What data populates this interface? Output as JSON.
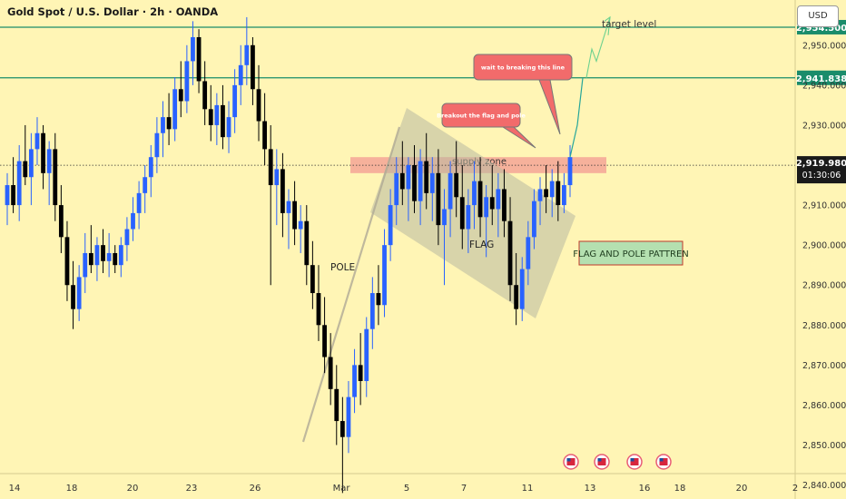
{
  "header": {
    "title": "Gold Spot / U.S. Dollar · 2h · OANDA",
    "currency_button": "USD"
  },
  "chart_data": {
    "type": "candlestick",
    "y_ticks": [
      "2,950.000",
      "2,940.000",
      "2,930.000",
      "2,920.000",
      "2,910.000",
      "2,900.000",
      "2,890.000",
      "2,880.000",
      "2,870.000",
      "2,860.000",
      "2,850.000",
      "2,840.000"
    ],
    "y_tick_values": [
      2950,
      2940,
      2930,
      2920,
      2910,
      2900,
      2890,
      2880,
      2870,
      2860,
      2850,
      2840
    ],
    "ylim": [
      2836.5,
      2961.3
    ],
    "x_ticks": [
      "14",
      "18",
      "20",
      "23",
      "26",
      "Mar",
      "5",
      "7",
      "11",
      "13",
      "16",
      "18",
      "20",
      "2"
    ],
    "levels": [
      {
        "price": 2954.5,
        "label": "2,954.500",
        "color": "#1A8C6B"
      },
      {
        "price": 2941.838,
        "label": "2,941.838",
        "color": "#1A8C6B"
      }
    ],
    "current_price": {
      "price": 2919.98,
      "label": "2,919.980",
      "countdown": "01:30:06"
    },
    "candles": [
      [
        2910,
        2918,
        2905,
        2915
      ],
      [
        2915,
        2922,
        2908,
        2910
      ],
      [
        2910,
        2925,
        2906,
        2921
      ],
      [
        2921,
        2930,
        2915,
        2917
      ],
      [
        2917,
        2928,
        2910,
        2924
      ],
      [
        2924,
        2932,
        2920,
        2928
      ],
      [
        2928,
        2930,
        2914,
        2918
      ],
      [
        2918,
        2926,
        2910,
        2924
      ],
      [
        2924,
        2928,
        2906,
        2910
      ],
      [
        2910,
        2915,
        2898,
        2902
      ],
      [
        2902,
        2906,
        2886,
        2890
      ],
      [
        2890,
        2896,
        2879,
        2884
      ],
      [
        2884,
        2895,
        2881,
        2892
      ],
      [
        2892,
        2903,
        2888,
        2898
      ],
      [
        2898,
        2905,
        2893,
        2895
      ],
      [
        2895,
        2902,
        2891,
        2900
      ],
      [
        2900,
        2904,
        2893,
        2896
      ],
      [
        2896,
        2903,
        2892,
        2898
      ],
      [
        2898,
        2900,
        2893,
        2895
      ],
      [
        2895,
        2902,
        2892,
        2900
      ],
      [
        2900,
        2907,
        2896,
        2904
      ],
      [
        2904,
        2912,
        2901,
        2908
      ],
      [
        2908,
        2916,
        2904,
        2913
      ],
      [
        2913,
        2920,
        2908,
        2917
      ],
      [
        2917,
        2925,
        2912,
        2922
      ],
      [
        2922,
        2932,
        2918,
        2928
      ],
      [
        2928,
        2936,
        2922,
        2932
      ],
      [
        2932,
        2938,
        2925,
        2929
      ],
      [
        2929,
        2942,
        2926,
        2939
      ],
      [
        2939,
        2946,
        2932,
        2936
      ],
      [
        2936,
        2950,
        2933,
        2946
      ],
      [
        2946,
        2956,
        2940,
        2952
      ],
      [
        2952,
        2954,
        2938,
        2941
      ],
      [
        2941,
        2946,
        2930,
        2934
      ],
      [
        2934,
        2940,
        2926,
        2930
      ],
      [
        2930,
        2938,
        2925,
        2935
      ],
      [
        2935,
        2940,
        2924,
        2927
      ],
      [
        2927,
        2936,
        2923,
        2932
      ],
      [
        2932,
        2944,
        2928,
        2940
      ],
      [
        2940,
        2950,
        2935,
        2945
      ],
      [
        2945,
        2957,
        2940,
        2950
      ],
      [
        2950,
        2952,
        2935,
        2939
      ],
      [
        2939,
        2945,
        2926,
        2931
      ],
      [
        2931,
        2938,
        2920,
        2924
      ],
      [
        2924,
        2930,
        2890,
        2915
      ],
      [
        2915,
        2924,
        2905,
        2919
      ],
      [
        2919,
        2923,
        2902,
        2908
      ],
      [
        2908,
        2914,
        2899,
        2911
      ],
      [
        2911,
        2916,
        2900,
        2904
      ],
      [
        2904,
        2910,
        2898,
        2906
      ],
      [
        2906,
        2910,
        2890,
        2895
      ],
      [
        2895,
        2901,
        2884,
        2888
      ],
      [
        2888,
        2895,
        2876,
        2880
      ],
      [
        2880,
        2887,
        2868,
        2872
      ],
      [
        2872,
        2878,
        2860,
        2864
      ],
      [
        2864,
        2870,
        2850,
        2856
      ],
      [
        2856,
        2862,
        2838,
        2852
      ],
      [
        2852,
        2866,
        2848,
        2862
      ],
      [
        2862,
        2874,
        2858,
        2870
      ],
      [
        2870,
        2878,
        2860,
        2866
      ],
      [
        2866,
        2882,
        2862,
        2879
      ],
      [
        2879,
        2892,
        2874,
        2888
      ],
      [
        2888,
        2895,
        2880,
        2885
      ],
      [
        2885,
        2904,
        2882,
        2900
      ],
      [
        2900,
        2914,
        2896,
        2910
      ],
      [
        2910,
        2922,
        2905,
        2918
      ],
      [
        2918,
        2926,
        2910,
        2914
      ],
      [
        2914,
        2922,
        2906,
        2920
      ],
      [
        2920,
        2925,
        2908,
        2911
      ],
      [
        2911,
        2924,
        2905,
        2921
      ],
      [
        2921,
        2928,
        2909,
        2913
      ],
      [
        2913,
        2922,
        2906,
        2918
      ],
      [
        2918,
        2924,
        2900,
        2905
      ],
      [
        2905,
        2914,
        2890,
        2909
      ],
      [
        2909,
        2921,
        2902,
        2918
      ],
      [
        2918,
        2926,
        2907,
        2912
      ],
      [
        2912,
        2920,
        2899,
        2904
      ],
      [
        2904,
        2914,
        2898,
        2910
      ],
      [
        2910,
        2921,
        2904,
        2916
      ],
      [
        2916,
        2922,
        2902,
        2907
      ],
      [
        2907,
        2915,
        2897,
        2912
      ],
      [
        2912,
        2920,
        2905,
        2909
      ],
      [
        2909,
        2918,
        2902,
        2914
      ],
      [
        2914,
        2919,
        2902,
        2906
      ],
      [
        2906,
        2912,
        2886,
        2890
      ],
      [
        2890,
        2898,
        2880,
        2884
      ],
      [
        2884,
        2897,
        2881,
        2894
      ],
      [
        2894,
        2906,
        2890,
        2902
      ],
      [
        2902,
        2914,
        2899,
        2911
      ],
      [
        2911,
        2917,
        2905,
        2914
      ],
      [
        2914,
        2920,
        2908,
        2912
      ],
      [
        2912,
        2919,
        2907,
        2916
      ],
      [
        2916,
        2921,
        2906,
        2910
      ],
      [
        2910,
        2918,
        2908,
        2915
      ],
      [
        2915,
        2925,
        2912,
        2922
      ]
    ],
    "annotations": {
      "target_label": "target level",
      "supply_label": "supply zone",
      "pole_label": "POLE",
      "flag_label": "FLAG",
      "pattern_label": "FLAG AND POLE PATTREN",
      "callout_breakout": "Breakout the flag and pole",
      "callout_wait": "wait to breaking this line"
    },
    "supply_zone": [
      2918,
      2922
    ],
    "colors": {
      "up": "#2962FF",
      "down": "#000000",
      "level": "#1A8C6B",
      "supply": "#F4A596",
      "flag": "#B8B8A0",
      "callout": "#F26B6B",
      "pattern_box": "#B4E0B0"
    }
  }
}
